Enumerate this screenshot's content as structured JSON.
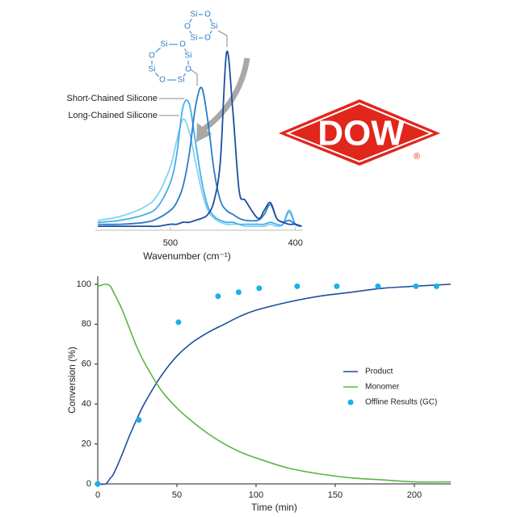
{
  "chart_data": [
    {
      "type": "line",
      "xlabel": "Wavenumber (cm⁻¹)",
      "x": [
        558,
        540,
        520,
        510,
        500,
        495,
        490,
        485,
        480,
        475,
        470,
        465,
        460,
        455,
        450,
        445,
        440,
        430,
        425,
        420,
        415,
        410,
        405,
        400,
        395
      ],
      "xlim": [
        560,
        394
      ],
      "xticks": [
        500,
        400
      ],
      "ylim": [
        0,
        100
      ],
      "series": [
        {
          "name": "Long-Chained Silicone",
          "color": "#7fd3f2",
          "values": [
            5,
            7,
            12,
            18,
            32,
            45,
            56,
            50,
            35,
            20,
            10,
            6,
            4,
            3,
            3,
            3,
            2,
            2,
            2,
            3,
            2,
            3,
            9,
            3,
            2
          ]
        },
        {
          "name": "Short-Chained Silicone",
          "color": "#45aee8",
          "values": [
            4,
            5,
            8,
            12,
            24,
            38,
            62,
            64,
            45,
            25,
            12,
            7,
            5,
            4,
            4,
            3,
            3,
            3,
            3,
            4,
            3,
            3,
            10,
            3,
            2
          ]
        },
        {
          "color": "#2a7cc7",
          "values": [
            3,
            3,
            4,
            6,
            10,
            14,
            22,
            38,
            62,
            72,
            55,
            30,
            15,
            10,
            8,
            6,
            5,
            5,
            8,
            13,
            6,
            4,
            5,
            3,
            2
          ]
        },
        {
          "color": "#1d4f9c",
          "values": [
            2,
            2,
            2,
            2,
            3,
            3,
            4,
            4,
            5,
            6,
            8,
            15,
            35,
            90,
            60,
            20,
            15,
            6,
            10,
            14,
            6,
            4,
            3,
            3,
            2
          ]
        }
      ]
    },
    {
      "type": "line",
      "xlabel": "Time (min)",
      "ylabel": "Conversion (%)",
      "x": [
        0,
        5,
        8,
        10,
        15,
        20,
        25,
        30,
        40,
        50,
        60,
        70,
        80,
        90,
        100,
        120,
        140,
        160,
        180,
        200,
        223
      ],
      "xlim": [
        0,
        223
      ],
      "xticks": [
        0,
        50,
        100,
        150,
        200
      ],
      "ylim": [
        0,
        104
      ],
      "yticks": [
        0,
        20,
        40,
        60,
        80,
        100
      ],
      "legend": "right",
      "series": [
        {
          "name": "Product",
          "color": "#1f4e9c",
          "values": [
            0,
            0,
            3,
            5,
            14,
            24,
            33,
            41,
            54,
            64,
            71,
            76,
            80,
            84,
            87,
            91,
            94,
            96,
            98,
            99,
            100
          ]
        },
        {
          "name": "Monomer",
          "color": "#5bb544",
          "values": [
            99,
            100,
            99,
            96,
            88,
            78,
            68,
            60,
            47,
            38,
            31,
            25,
            20,
            16,
            13,
            8,
            5,
            3,
            2,
            1,
            1
          ]
        },
        {
          "name": "Offline Results (GC)",
          "type": "scatter",
          "color": "#1ab0e8",
          "x": [
            0,
            26,
            51,
            76,
            89,
            102,
            126,
            151,
            177,
            201,
            214
          ],
          "values": [
            0,
            32,
            81,
            94,
            96,
            98,
            99,
            99,
            99,
            99,
            99
          ]
        }
      ]
    }
  ],
  "structures": [
    {
      "atoms": [
        "Si",
        "O",
        "Si",
        "O",
        "Si",
        "O",
        "Si",
        "O"
      ]
    },
    {
      "atoms": [
        "Si",
        "O",
        "Si",
        "O",
        "Si",
        "O"
      ]
    }
  ],
  "logo": {
    "text": "DOW",
    "mark": "®"
  }
}
